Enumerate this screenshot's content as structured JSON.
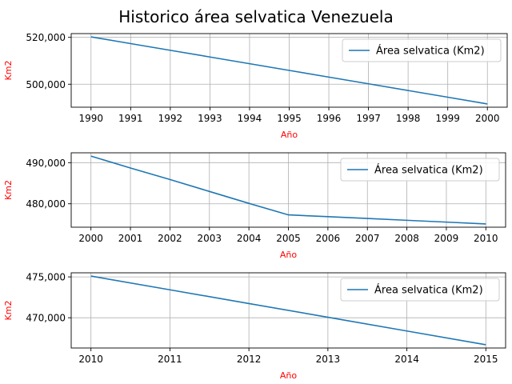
{
  "figure": {
    "title": "Historico área selvatica Venezuela"
  },
  "colors": {
    "line": "#1f77b4",
    "axis_label": "#ff0000",
    "grid": "#b0b0b0",
    "frame": "#000000",
    "text": "#000000"
  },
  "chart_data": [
    {
      "type": "line",
      "xlabel": "Año",
      "ylabel": "Km2",
      "x": [
        1990,
        1991,
        1992,
        1993,
        1994,
        1995,
        1996,
        1997,
        1998,
        1999,
        2000
      ],
      "series": [
        {
          "name": "Área selvatica (Km2)",
          "values": [
            520200,
            517340,
            514480,
            511620,
            508760,
            505900,
            503040,
            500180,
            497320,
            494460,
            491600
          ]
        }
      ],
      "xlim": [
        1989.5,
        2000.5
      ],
      "ylim": [
        490200,
        521600
      ],
      "xticks": [
        1990,
        1991,
        1992,
        1993,
        1994,
        1995,
        1996,
        1997,
        1998,
        1999,
        2000
      ],
      "xtick_labels": [
        "1990",
        "1991",
        "1992",
        "1993",
        "1994",
        "1995",
        "1996",
        "1997",
        "1998",
        "1999",
        "2000"
      ],
      "yticks": [
        500000,
        520000
      ],
      "ytick_labels": [
        "500,000",
        "520,000"
      ],
      "grid": true,
      "legend": "top-right"
    },
    {
      "type": "line",
      "xlabel": "Año",
      "ylabel": "Km2",
      "x": [
        2000,
        2001,
        2002,
        2003,
        2004,
        2005,
        2006,
        2007,
        2008,
        2009,
        2010
      ],
      "series": [
        {
          "name": "Área selvatica (Km2)",
          "values": [
            491600,
            488700,
            485900,
            483000,
            480100,
            477300,
            476860,
            476420,
            475980,
            475540,
            475100
          ]
        }
      ],
      "xlim": [
        1999.5,
        2010.5
      ],
      "ylim": [
        474300,
        492400
      ],
      "xticks": [
        2000,
        2001,
        2002,
        2003,
        2004,
        2005,
        2006,
        2007,
        2008,
        2009,
        2010
      ],
      "xtick_labels": [
        "2000",
        "2001",
        "2002",
        "2003",
        "2004",
        "2005",
        "2006",
        "2007",
        "2008",
        "2009",
        "2010"
      ],
      "yticks": [
        480000,
        490000
      ],
      "ytick_labels": [
        "480,000",
        "490,000"
      ],
      "grid": true,
      "legend": "top-right"
    },
    {
      "type": "line",
      "xlabel": "Año",
      "ylabel": "Km2",
      "x": [
        2010,
        2011,
        2012,
        2013,
        2014,
        2015
      ],
      "series": [
        {
          "name": "Área selvatica (Km2)",
          "values": [
            475100,
            473420,
            471740,
            470060,
            468380,
            466700
          ]
        }
      ],
      "xlim": [
        2009.75,
        2015.25
      ],
      "ylim": [
        466300,
        475500
      ],
      "xticks": [
        2010,
        2011,
        2012,
        2013,
        2014,
        2015
      ],
      "xtick_labels": [
        "2010",
        "2011",
        "2012",
        "2013",
        "2014",
        "2015"
      ],
      "yticks": [
        470000,
        475000
      ],
      "ytick_labels": [
        "470,000",
        "475,000"
      ],
      "grid": true,
      "legend": "top-right"
    }
  ]
}
